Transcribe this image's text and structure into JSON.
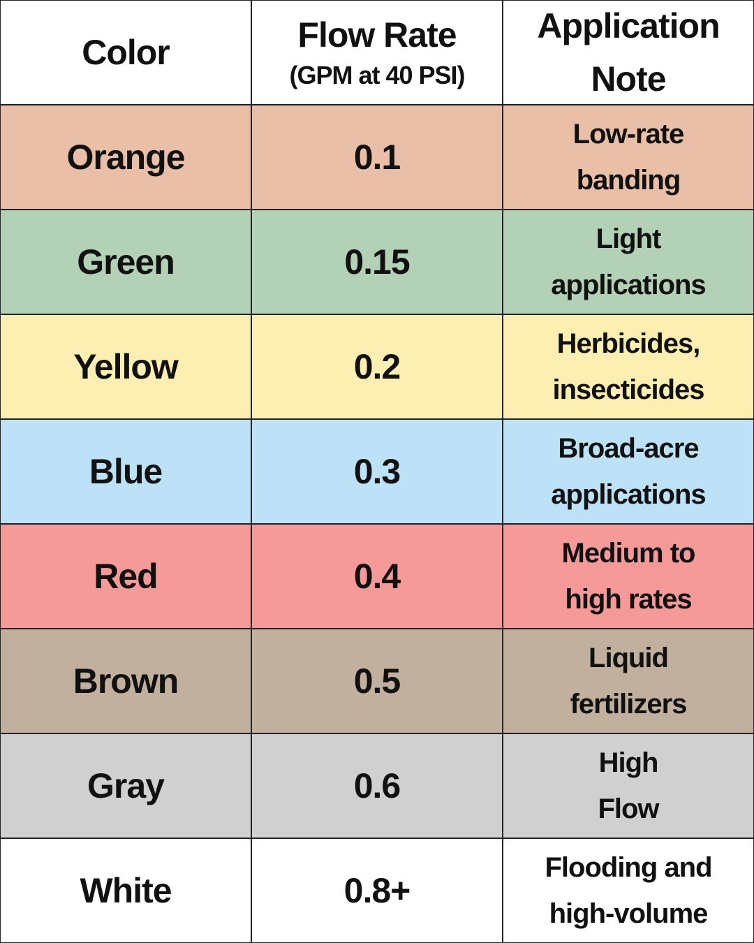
{
  "header": {
    "color": "Color",
    "rate": "Flow Rate",
    "rate_unit": "(GPM at 40 PSI)",
    "note": [
      "Application",
      "Note"
    ]
  },
  "rows": [
    {
      "color_name": "Orange",
      "rate": "0.1",
      "note": [
        "Low-rate",
        "banding"
      ],
      "background": "#e9bfa8"
    },
    {
      "color_name": "Green",
      "rate": "0.15",
      "note": [
        "Light",
        "applications"
      ],
      "background": "#b3d1b6"
    },
    {
      "color_name": "Yellow",
      "rate": "0.2",
      "note": [
        "Herbicides,",
        "insecticides"
      ],
      "background": "#fdeeb2"
    },
    {
      "color_name": "Blue",
      "rate": "0.3",
      "note": [
        "Broad-acre",
        "applications"
      ],
      "background": "#bde2f7"
    },
    {
      "color_name": "Red",
      "rate": "0.4",
      "note": [
        "Medium to",
        "high rates"
      ],
      "background": "#f69999"
    },
    {
      "color_name": "Brown",
      "rate": "0.5",
      "note": [
        "Liquid",
        "fertilizers"
      ],
      "background": "#c1b09d"
    },
    {
      "color_name": "Gray",
      "rate": "0.6",
      "note": [
        "High",
        "Flow"
      ],
      "background": "#d0d0d0"
    },
    {
      "color_name": "White",
      "rate": "0.8+",
      "note": [
        "Flooding and",
        "high-volume"
      ],
      "background": "#ffffff"
    }
  ]
}
